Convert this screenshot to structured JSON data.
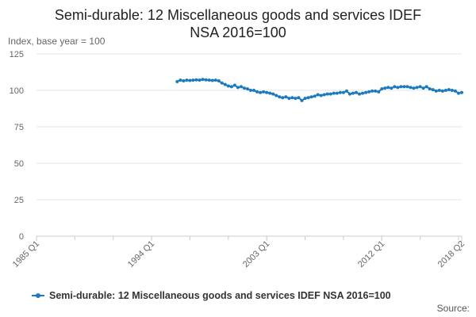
{
  "header": {
    "title_line1": "Semi-durable: 12 Miscellaneous goods and services IDEF",
    "title_line2": "NSA 2016=100",
    "y_axis_caption": "Index, base year = 100"
  },
  "footer": {
    "source": "Source:"
  },
  "colors": {
    "series": "#1a7ac0",
    "grid": "#e6e6e6",
    "axis": "#cccccc",
    "tick_text": "#666666"
  },
  "chart_data": {
    "type": "line",
    "title": "Semi-durable: 12 Miscellaneous goods and services IDEF NSA 2016=100",
    "ylabel": "Index, base year = 100",
    "xlabel": "",
    "ylim": [
      0,
      125
    ],
    "yticks": [
      0,
      25,
      50,
      75,
      100,
      125
    ],
    "xlim": [
      "1985 Q1",
      "2018 Q2"
    ],
    "xticks": [
      "1985 Q1",
      "1994 Q1",
      "2003 Q1",
      "2012 Q1",
      "2018 Q2"
    ],
    "grid": "horizontal",
    "legend": "bottom",
    "series": [
      {
        "name": "Semi-durable: 12 Miscellaneous goods and services IDEF NSA 2016=100",
        "x": [
          "1996 Q1",
          "1996 Q2",
          "1996 Q3",
          "1996 Q4",
          "1997 Q1",
          "1997 Q2",
          "1997 Q3",
          "1997 Q4",
          "1998 Q1",
          "1998 Q2",
          "1998 Q3",
          "1998 Q4",
          "1999 Q1",
          "1999 Q2",
          "1999 Q3",
          "1999 Q4",
          "2000 Q1",
          "2000 Q2",
          "2000 Q3",
          "2000 Q4",
          "2001 Q1",
          "2001 Q2",
          "2001 Q3",
          "2001 Q4",
          "2002 Q1",
          "2002 Q2",
          "2002 Q3",
          "2002 Q4",
          "2003 Q1",
          "2003 Q2",
          "2003 Q3",
          "2003 Q4",
          "2004 Q1",
          "2004 Q2",
          "2004 Q3",
          "2004 Q4",
          "2005 Q1",
          "2005 Q2",
          "2005 Q3",
          "2005 Q4",
          "2006 Q1",
          "2006 Q2",
          "2006 Q3",
          "2006 Q4",
          "2007 Q1",
          "2007 Q2",
          "2007 Q3",
          "2007 Q4",
          "2008 Q1",
          "2008 Q2",
          "2008 Q3",
          "2008 Q4",
          "2009 Q1",
          "2009 Q2",
          "2009 Q3",
          "2009 Q4",
          "2010 Q1",
          "2010 Q2",
          "2010 Q3",
          "2010 Q4",
          "2011 Q1",
          "2011 Q2",
          "2011 Q3",
          "2011 Q4",
          "2012 Q1",
          "2012 Q2",
          "2012 Q3",
          "2012 Q4",
          "2013 Q1",
          "2013 Q2",
          "2013 Q3",
          "2013 Q4",
          "2014 Q1",
          "2014 Q2",
          "2014 Q3",
          "2014 Q4",
          "2015 Q1",
          "2015 Q2",
          "2015 Q3",
          "2015 Q4",
          "2016 Q1",
          "2016 Q2",
          "2016 Q3",
          "2016 Q4",
          "2017 Q1",
          "2017 Q2",
          "2017 Q3",
          "2017 Q4",
          "2018 Q1",
          "2018 Q2"
        ],
        "values": [
          106.0,
          107.0,
          106.5,
          107.0,
          106.8,
          107.0,
          107.2,
          107.0,
          107.5,
          107.2,
          107.0,
          106.8,
          107.0,
          106.5,
          105.0,
          104.0,
          103.0,
          102.5,
          103.5,
          102.0,
          102.5,
          101.5,
          101.0,
          100.0,
          100.0,
          99.0,
          98.5,
          99.0,
          98.5,
          98.0,
          97.5,
          96.5,
          95.5,
          95.0,
          95.5,
          94.5,
          95.0,
          94.5,
          95.0,
          93.0,
          94.5,
          95.0,
          95.5,
          96.0,
          97.0,
          96.5,
          97.0,
          97.5,
          97.5,
          98.0,
          98.0,
          98.5,
          98.5,
          99.5,
          97.5,
          98.0,
          98.5,
          97.5,
          98.0,
          98.5,
          99.0,
          99.5,
          99.5,
          99.0,
          101.0,
          101.5,
          102.0,
          101.5,
          102.5,
          102.0,
          102.5,
          102.5,
          102.5,
          102.0,
          101.5,
          102.0,
          102.5,
          101.5,
          102.5,
          101.0,
          100.5,
          99.5,
          100.0,
          99.5,
          100.0,
          100.5,
          100.0,
          99.5,
          98.0,
          98.5
        ]
      }
    ]
  }
}
